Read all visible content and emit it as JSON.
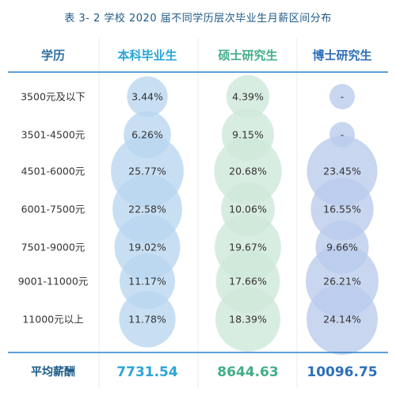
{
  "title": "表 3- 2  学校 2020 届不同学历层次毕业生月薪区间分布",
  "colors": {
    "header_text": "#2f6f9e",
    "header_col1": "#2aa5d6",
    "header_col2": "#43ad8a",
    "header_col3": "#2d6fb8",
    "row_text": "#333333",
    "row_label": "#333333",
    "bubble_col1": "#b9d6f0",
    "bubble_col2": "#cde8d8",
    "bubble_col3": "#b8cbec",
    "line": "#2a80c8",
    "avg_col1": "#2aa5d6",
    "avg_col2": "#43ad8a",
    "avg_col3": "#2d6fb8",
    "avg_label": "#1d5a86"
  },
  "chart_data": {
    "type": "table",
    "row_header": "学历",
    "columns": [
      "本科毕业生",
      "硕士研究生",
      "博士研究生"
    ],
    "rows": [
      {
        "label": "3500元及以下",
        "values": [
          "3.44%",
          "4.39%",
          "-"
        ],
        "nums": [
          3.44,
          4.39,
          null
        ]
      },
      {
        "label": "3501-4500元",
        "values": [
          "6.26%",
          "9.15%",
          "-"
        ],
        "nums": [
          6.26,
          9.15,
          null
        ]
      },
      {
        "label": "4501-6000元",
        "values": [
          "25.77%",
          "20.68%",
          "23.45%"
        ],
        "nums": [
          25.77,
          20.68,
          23.45
        ]
      },
      {
        "label": "6001-7500元",
        "values": [
          "22.58%",
          "10.06%",
          "16.55%"
        ],
        "nums": [
          22.58,
          10.06,
          16.55
        ]
      },
      {
        "label": "7501-9000元",
        "values": [
          "19.02%",
          "19.67%",
          "9.66%"
        ],
        "nums": [
          19.02,
          19.67,
          9.66
        ]
      },
      {
        "label": "9001-11000元",
        "values": [
          "11.17%",
          "17.66%",
          "26.21%"
        ],
        "nums": [
          11.17,
          17.66,
          26.21
        ]
      },
      {
        "label": "11000元以上",
        "values": [
          "11.78%",
          "18.39%",
          "24.14%"
        ],
        "nums": [
          11.78,
          18.39,
          24.14
        ]
      }
    ],
    "summary": {
      "label": "平均薪酬",
      "values": [
        "7731.54",
        "8644.63",
        "10096.75"
      ]
    }
  }
}
